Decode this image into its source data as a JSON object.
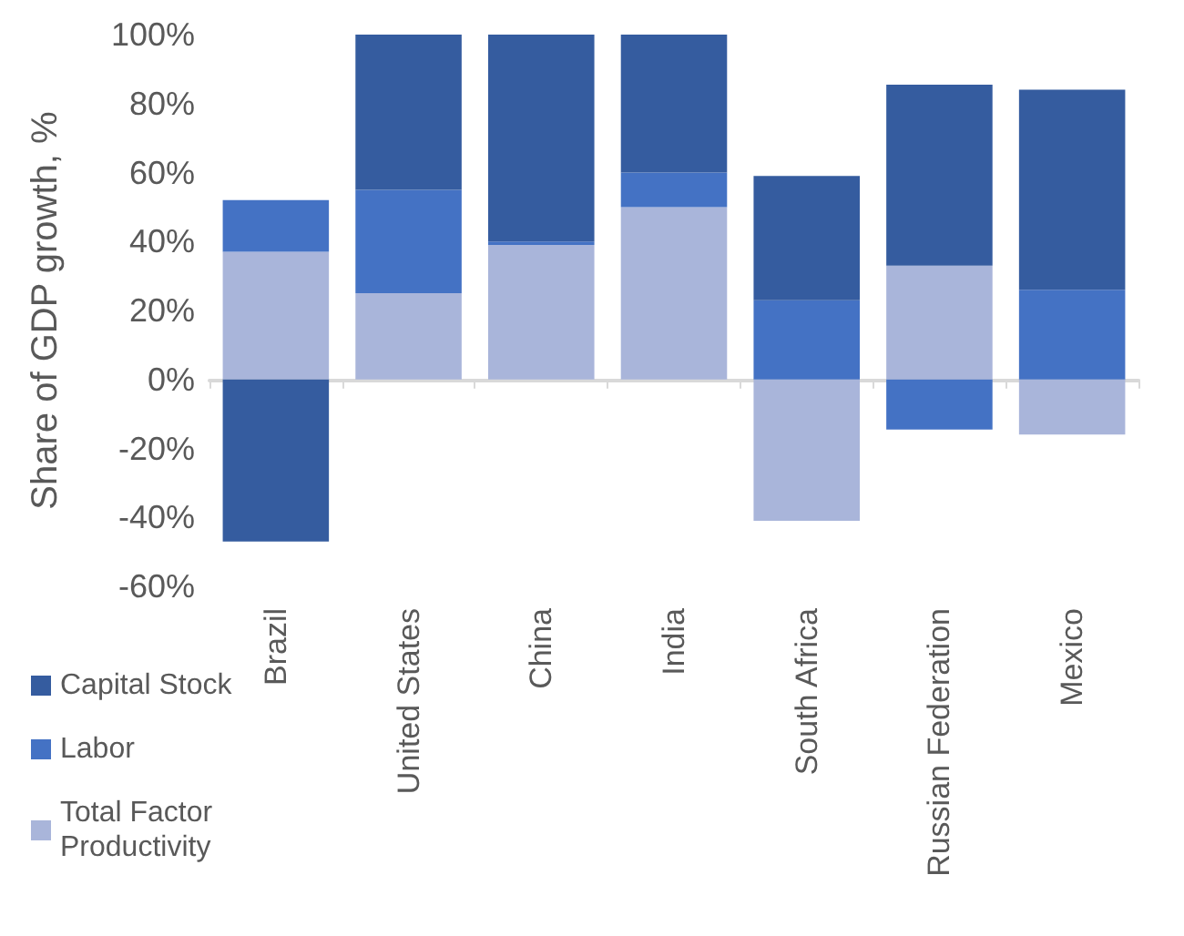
{
  "chart_data": {
    "type": "bar",
    "stacked": true,
    "ylabel": "Share of GDP growth, %",
    "categories": [
      "Brazil",
      "United States",
      "China",
      "India",
      "South Africa",
      "Russian Federation",
      "Mexico"
    ],
    "series": [
      {
        "name": "Total Factor Productivity",
        "color": "#a9b5da",
        "values": [
          37,
          25,
          39,
          50,
          -41,
          33,
          -16
        ]
      },
      {
        "name": "Labor",
        "color": "#4472c4",
        "values": [
          15,
          30,
          1,
          10,
          23,
          -14.5,
          26
        ]
      },
      {
        "name": "Capital Stock",
        "color": "#355c9f",
        "values": [
          -47,
          45,
          60,
          40,
          36,
          52.5,
          58
        ]
      }
    ],
    "ylim": [
      -60,
      100
    ],
    "yticks": [
      {
        "value": -60,
        "label": "-60%"
      },
      {
        "value": -40,
        "label": "-40%"
      },
      {
        "value": -20,
        "label": "-20%"
      },
      {
        "value": 0,
        "label": "0%"
      },
      {
        "value": 20,
        "label": "20%"
      },
      {
        "value": 40,
        "label": "40%"
      },
      {
        "value": 60,
        "label": "60%"
      },
      {
        "value": 80,
        "label": "80%"
      },
      {
        "value": 100,
        "label": "100%"
      }
    ],
    "legend": "left"
  }
}
